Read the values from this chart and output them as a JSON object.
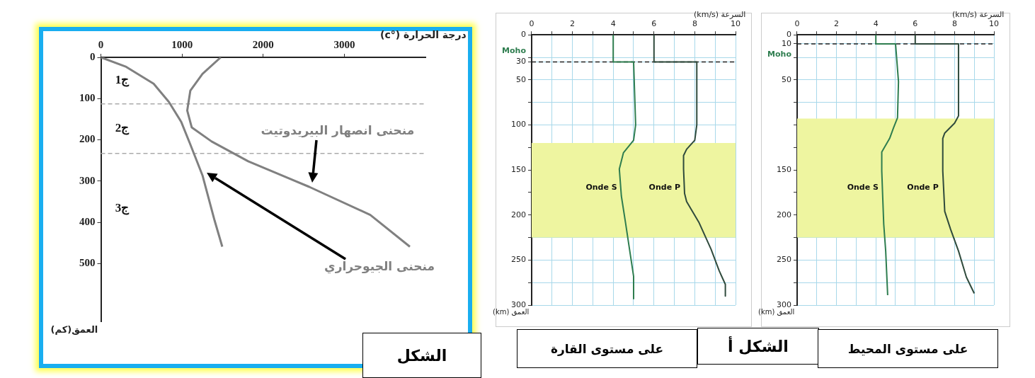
{
  "chart_data": [
    {
      "type": "line",
      "title": "الشكل",
      "xlabel": "درجة الحرارة (°c)",
      "ylabel": "العمق(كم)",
      "xlim": [
        0,
        4000
      ],
      "xticks": [
        0,
        1000,
        2000,
        3000
      ],
      "ylim": [
        640,
        0
      ],
      "yticks": [
        0,
        100,
        200,
        300,
        400,
        500
      ],
      "grid": false,
      "legend": false,
      "marker": "none",
      "series": [
        {
          "name": "منحنى الجيوحراري",
          "color": "#808080",
          "x": [
            0,
            312,
            650,
            838,
            989,
            1102,
            1252,
            1402,
            1496
          ],
          "values": [
            0,
            23,
            64,
            108,
            156,
            211,
            286,
            396,
            459
          ]
        },
        {
          "name": "منحنى انصهار البيريدوتيت",
          "color": "#808080",
          "x": [
            1477,
            1252,
            1102,
            1064,
            1120,
            1365,
            1816,
            2568,
            3320,
            3808
          ],
          "values": [
            0,
            40,
            81,
            129,
            170,
            204,
            252,
            314,
            382,
            459
          ]
        }
      ],
      "ref_lines": [
        {
          "axis": "y",
          "value": 113,
          "line_style": "dashed",
          "color": "#aaaaaa"
        },
        {
          "axis": "y",
          "value": 233,
          "line_style": "dashed",
          "color": "#aaaaaa"
        }
      ],
      "annotations": [
        "ج1",
        "ج2",
        "ج3"
      ]
    },
    {
      "type": "line",
      "title": "الشكل أ",
      "subtitle": "على مستوى القارة",
      "xlabel": "السرعة (km/s)",
      "ylabel": "العمق (km)",
      "xlim": [
        0,
        10
      ],
      "xticks": [
        0,
        {
          "value": 1,
          "label": null
        },
        2,
        {
          "value": 3,
          "label": null
        },
        4,
        {
          "value": 5,
          "label": null
        },
        6,
        {
          "value": 7,
          "label": null
        },
        8,
        {
          "value": 9,
          "label": null
        },
        10
      ],
      "ylim": [
        300,
        0
      ],
      "yticks": [
        0,
        {
          "value": 25,
          "label": null
        },
        30,
        50,
        {
          "value": 75,
          "label": null
        },
        100,
        {
          "value": 125,
          "label": null
        },
        150,
        {
          "value": 175,
          "label": null
        },
        200,
        {
          "value": 225,
          "label": null
        },
        250,
        {
          "value": 275,
          "label": null
        },
        300
      ],
      "grid": true,
      "legend": false,
      "marker": "none",
      "bands": [
        {
          "axis": "y",
          "from": 120,
          "to": 225,
          "color": "#eef5a0"
        }
      ],
      "ref_lines": [
        {
          "axis": "y",
          "value": 30,
          "label": "Moho",
          "line_style": "dashed",
          "color": "#222222"
        }
      ],
      "series": [
        {
          "name": "Onde S",
          "color": "#2e7d4f",
          "x": [
            4,
            4,
            5,
            5.1,
            5.0,
            4.5,
            4.3,
            4.4,
            4.6,
            4.8,
            5.0,
            5.0
          ],
          "values": [
            0,
            30,
            30,
            100,
            117,
            131,
            149,
            179,
            208,
            238,
            268,
            293
          ]
        },
        {
          "name": "Onde P",
          "color": "#2f4a3c",
          "x": [
            6,
            6,
            8.1,
            8.1,
            8.0,
            7.6,
            7.45,
            7.45,
            7.5,
            7.6,
            8.2,
            8.8,
            9.2,
            9.5,
            9.5
          ],
          "values": [
            0,
            30,
            30,
            100,
            117,
            127,
            134,
            149,
            176,
            185,
            208,
            238,
            262,
            277,
            290
          ]
        }
      ]
    },
    {
      "type": "line",
      "subtitle": "على مستوى المحيط",
      "xlabel": "السرعة (km/s)",
      "ylabel": "العمق (km)",
      "xlim": [
        0,
        10
      ],
      "xticks": [
        0,
        {
          "value": 1,
          "label": null
        },
        2,
        {
          "value": 3,
          "label": null
        },
        4,
        {
          "value": 5,
          "label": null
        },
        6,
        {
          "value": 7,
          "label": null
        },
        8,
        {
          "value": 9,
          "label": null
        },
        10
      ],
      "ylim": [
        300,
        0
      ],
      "yticks": [
        0,
        10,
        {
          "value": 25,
          "label": null
        },
        50,
        {
          "value": 75,
          "label": null
        },
        {
          "value": 100,
          "label": null
        },
        {
          "value": 125,
          "label": null
        },
        150,
        {
          "value": 175,
          "label": null
        },
        200,
        {
          "value": 225,
          "label": null
        },
        250,
        {
          "value": 275,
          "label": null
        },
        300
      ],
      "grid": true,
      "legend": false,
      "marker": "none",
      "bands": [
        {
          "axis": "y",
          "from": 93,
          "to": 225,
          "color": "#eef5a0"
        }
      ],
      "ref_lines": [
        {
          "axis": "y",
          "value": 10,
          "label": "Moho",
          "line_style": "dashed",
          "color": "#222222"
        }
      ],
      "series": [
        {
          "name": "Onde S",
          "color": "#2e7d4f",
          "x": [
            4,
            4,
            5,
            5.15,
            5.1,
            4.9,
            4.7,
            4.3,
            4.3,
            4.35,
            4.4,
            4.5,
            4.6
          ],
          "values": [
            0,
            10,
            10,
            52,
            92,
            103,
            115,
            130,
            151,
            181,
            210,
            240,
            289
          ]
        },
        {
          "name": "Onde P",
          "color": "#2f4a3c",
          "x": [
            6,
            6,
            8.2,
            8.2,
            8.0,
            7.5,
            7.4,
            7.4,
            7.5,
            7.8,
            8.2,
            8.6,
            9.0
          ],
          "values": [
            0,
            10,
            10,
            90,
            98,
            109,
            115,
            151,
            196,
            216,
            240,
            269,
            287
          ]
        }
      ]
    }
  ]
}
